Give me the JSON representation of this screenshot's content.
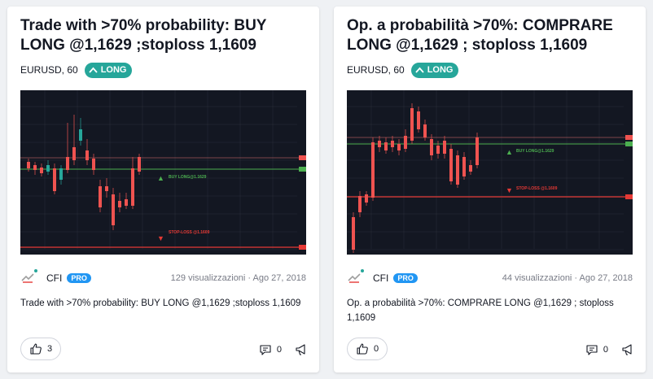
{
  "cards": [
    {
      "title": "Trade with >70% probability: BUY LONG @1,1629 ;stoploss 1,1609",
      "symbol": "EURUSD, 60",
      "direction": "LONG",
      "chart": {
        "buy_label": "BUY LONG@1.1629",
        "stop_label": "STOP-LOSS @1.1609"
      },
      "author": "CFI",
      "author_badge": "PRO",
      "stats": "129 visualizzazioni · Ago 27, 2018",
      "description": "Trade with >70% probability: BUY LONG @1,1629 ;stoploss 1,1609",
      "likes": "3",
      "comments": "0"
    },
    {
      "title": "Op. a probabilità >70%: COMPRARE LONG @1,1629 ; stoploss 1,1609",
      "symbol": "EURUSD, 60",
      "direction": "LONG",
      "chart": {
        "buy_label": "BUY LONG@1.1629",
        "stop_label": "STOP-LOSS @1.1609"
      },
      "author": "CFI",
      "author_badge": "PRO",
      "stats": "44 visualizzazioni · Ago 27, 2018",
      "description": "Op. a probabilità >70%: COMPRARE LONG @1,1629 ; stoploss 1,1609",
      "likes": "0",
      "comments": "0"
    }
  ],
  "colors": {
    "long_badge": "#26a69a",
    "pro_badge": "#2196f3",
    "chart_bg": "#131722",
    "bull": "#26a69a",
    "bear": "#ef5350",
    "buy_line": "#4caf50",
    "stop_line": "#e53935"
  }
}
